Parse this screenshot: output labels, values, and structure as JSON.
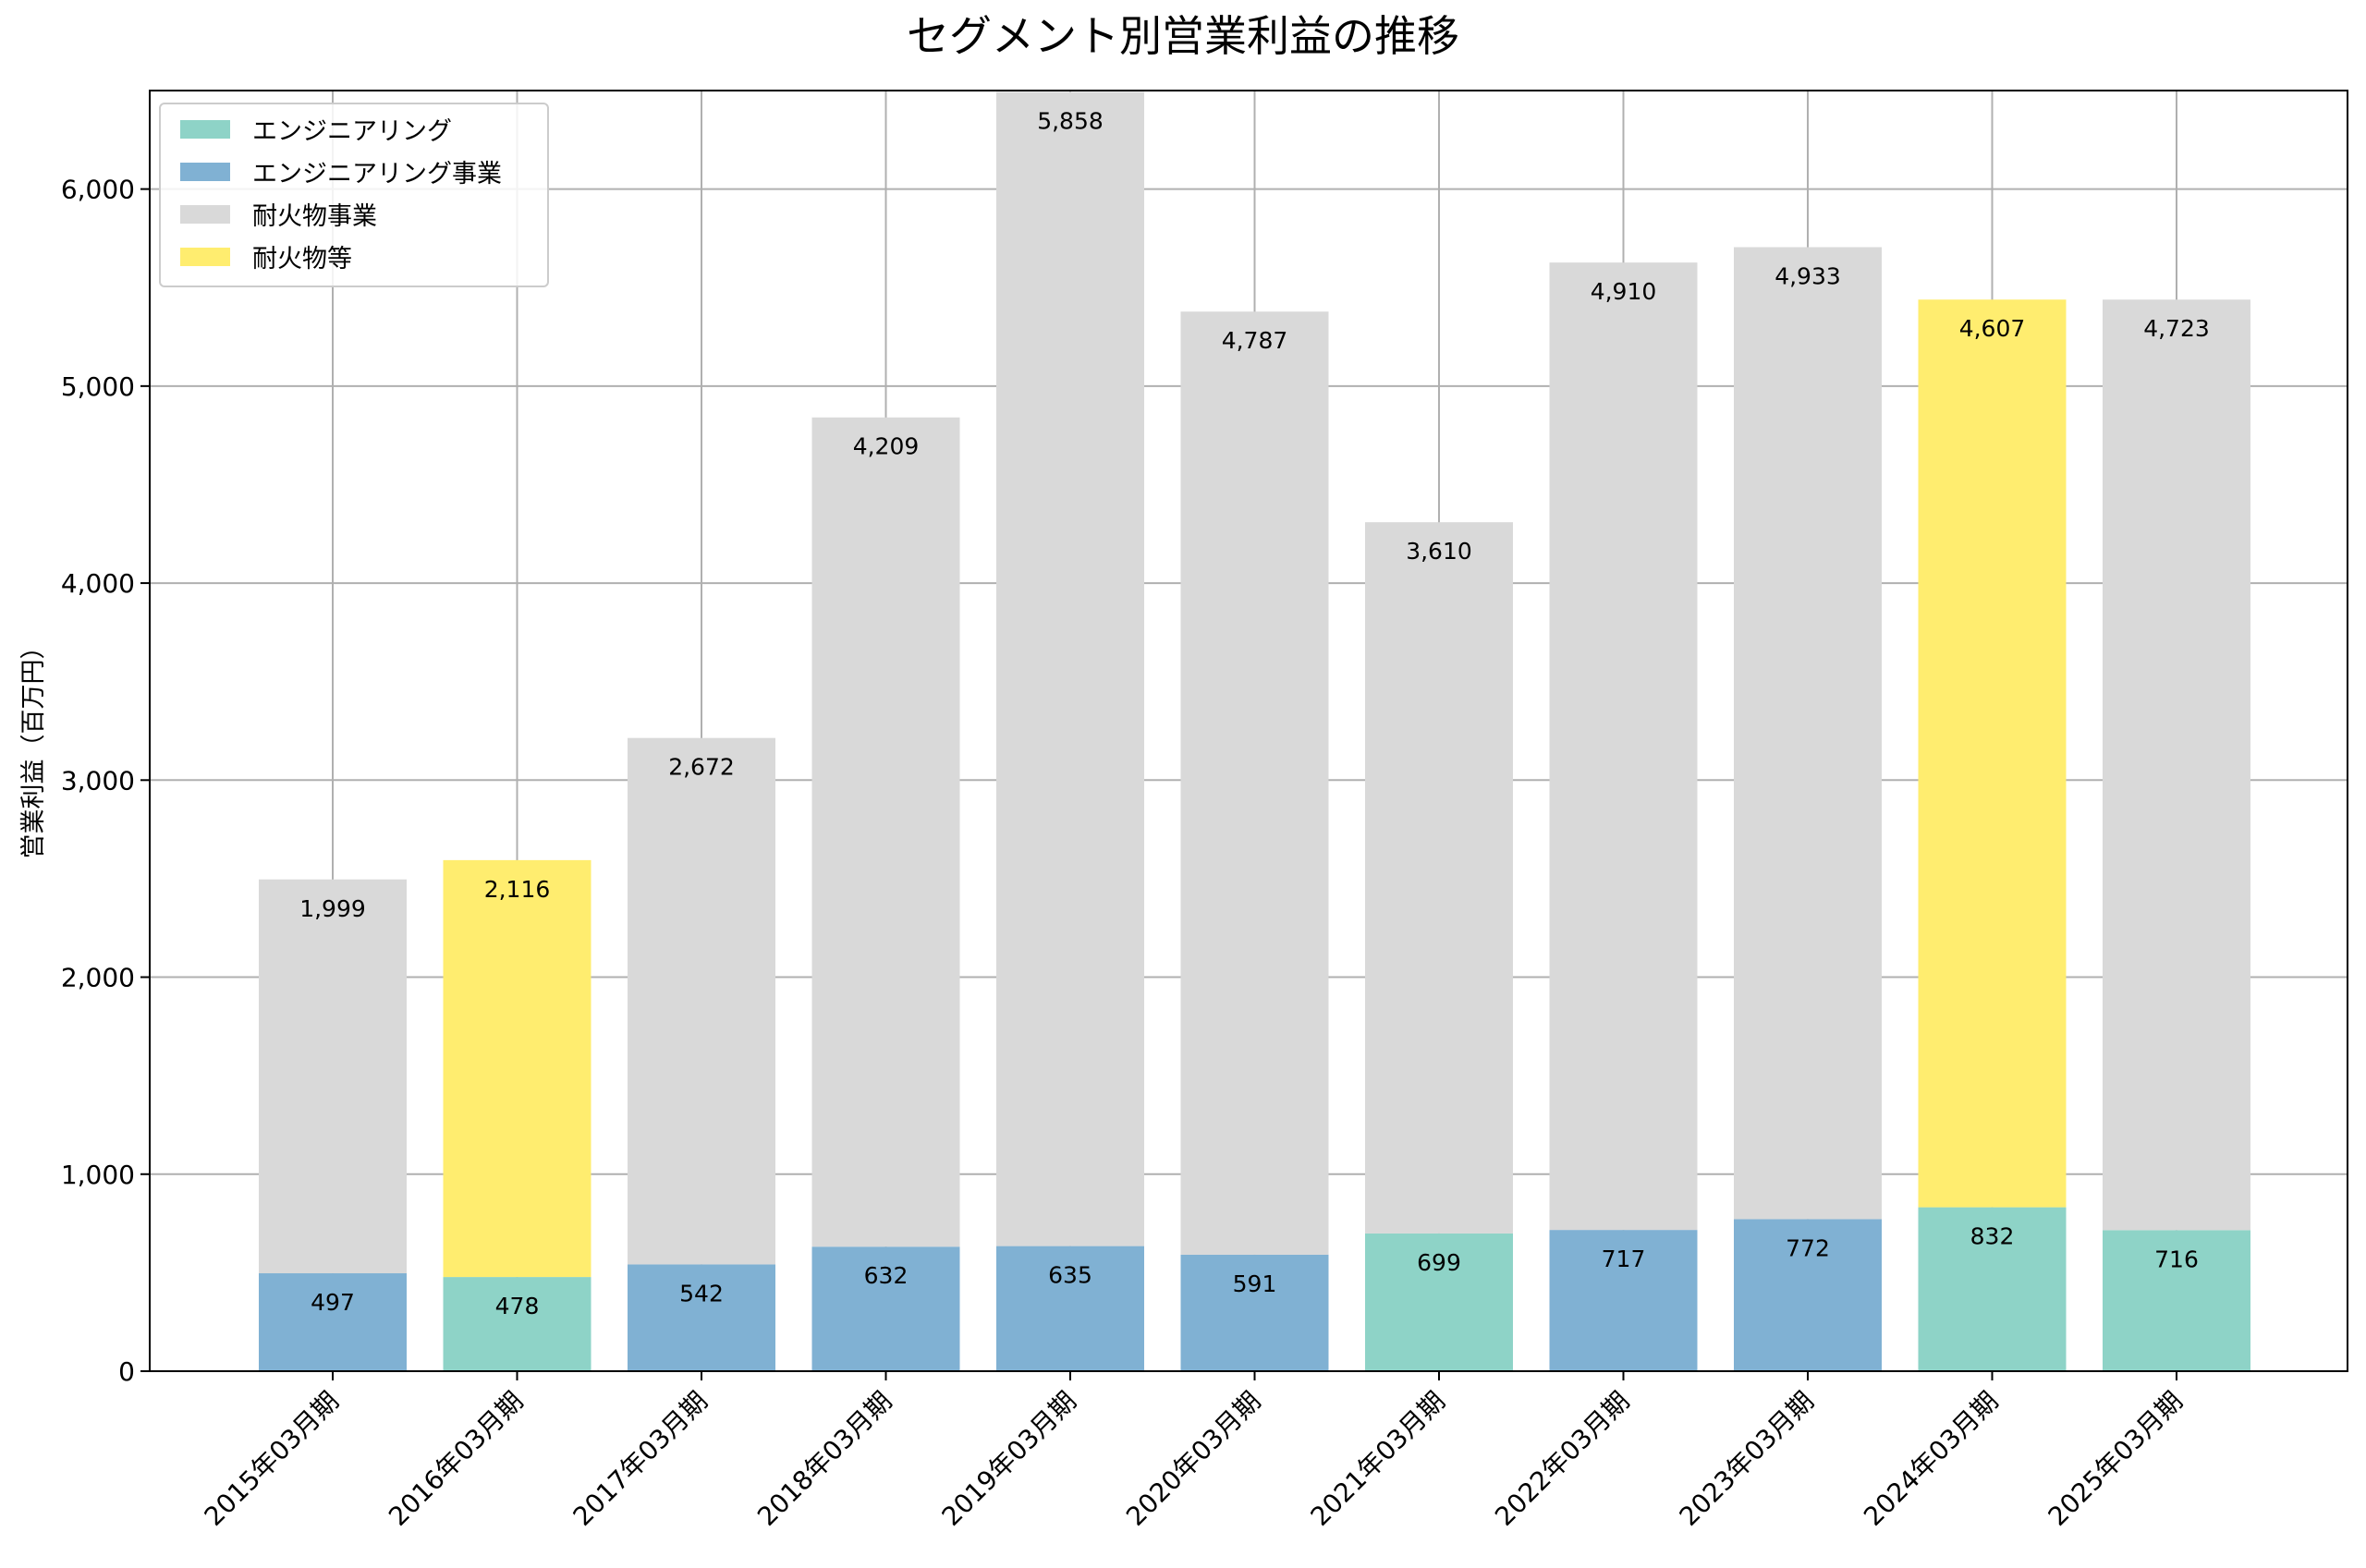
{
  "chart_data": {
    "type": "bar",
    "stacked": true,
    "title": "セグメント別営業利益の推移",
    "xlabel": "",
    "ylabel": "営業利益（百万円）",
    "ylim": [
      0,
      6500
    ],
    "yticks": [
      0,
      1000,
      2000,
      3000,
      4000,
      5000,
      6000
    ],
    "ytick_labels": [
      "0",
      "1,000",
      "2,000",
      "3,000",
      "4,000",
      "5,000",
      "6,000"
    ],
    "grid": true,
    "legend_position": "top-left",
    "categories": [
      "2015年03月期",
      "2016年03月期",
      "2017年03月期",
      "2018年03月期",
      "2019年03月期",
      "2020年03月期",
      "2021年03月期",
      "2022年03月期",
      "2023年03月期",
      "2024年03月期",
      "2025年03月期"
    ],
    "series": [
      {
        "name": "エンジニアリング",
        "color": "#8ed3c7",
        "values": [
          null,
          478,
          null,
          null,
          null,
          null,
          699,
          null,
          null,
          832,
          716
        ]
      },
      {
        "name": "エンジニアリング事業",
        "color": "#80b1d3",
        "values": [
          497,
          null,
          542,
          632,
          635,
          591,
          null,
          717,
          772,
          null,
          null
        ]
      },
      {
        "name": "耐火物事業",
        "color": "#d9d9d9",
        "values": [
          1999,
          null,
          2672,
          4209,
          5858,
          4787,
          3610,
          4910,
          4933,
          null,
          4723
        ]
      },
      {
        "name": "耐火物等",
        "color": "#ffed6f",
        "values": [
          null,
          2116,
          null,
          null,
          null,
          null,
          null,
          null,
          null,
          4607,
          null
        ]
      }
    ]
  }
}
